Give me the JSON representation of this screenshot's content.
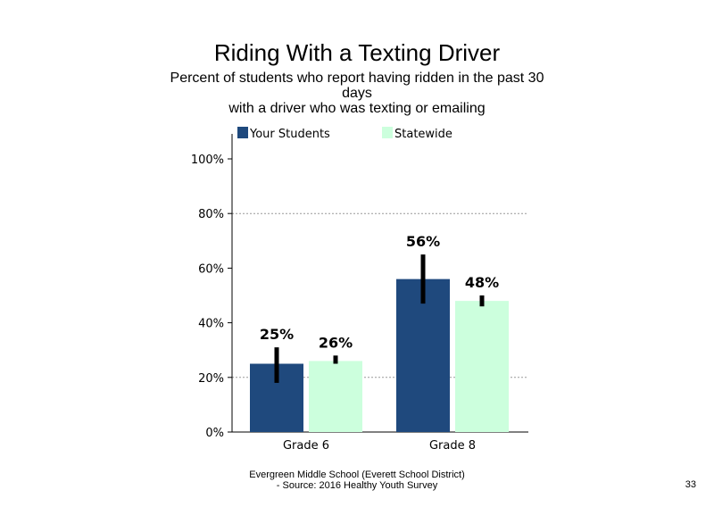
{
  "chart_data": {
    "type": "bar",
    "title": "Riding With a Texting Driver",
    "subtitle_lines": [
      "Percent of students who report having ridden in the past 30",
      "days",
      "with a driver who was texting or emailing"
    ],
    "categories": [
      "Grade 6",
      "Grade 8"
    ],
    "series": [
      {
        "name": "Your Students",
        "values": [
          25,
          56
        ],
        "labels": [
          "25%",
          "56%"
        ],
        "error": [
          [
            18,
            31
          ],
          [
            47,
            65
          ]
        ],
        "color": "#1f497d"
      },
      {
        "name": "Statewide",
        "values": [
          26,
          48
        ],
        "labels": [
          "26%",
          "48%"
        ],
        "error": [
          [
            25,
            28
          ],
          [
            46,
            50
          ]
        ],
        "color": "#ccffdd"
      }
    ],
    "yticks": [
      0,
      20,
      40,
      60,
      80,
      100
    ],
    "ytick_labels": [
      "0%",
      "20%",
      "40%",
      "60%",
      "80%",
      "100%"
    ],
    "ylim": [
      0,
      100
    ],
    "gridlines": [
      20,
      80
    ],
    "legend_position": "top",
    "xlabel": "",
    "ylabel": ""
  },
  "footer": {
    "line1": "Evergreen Middle School (Everett School District)",
    "line2": "- Source: 2016 Healthy  Youth Survey"
  },
  "page_number": "33"
}
